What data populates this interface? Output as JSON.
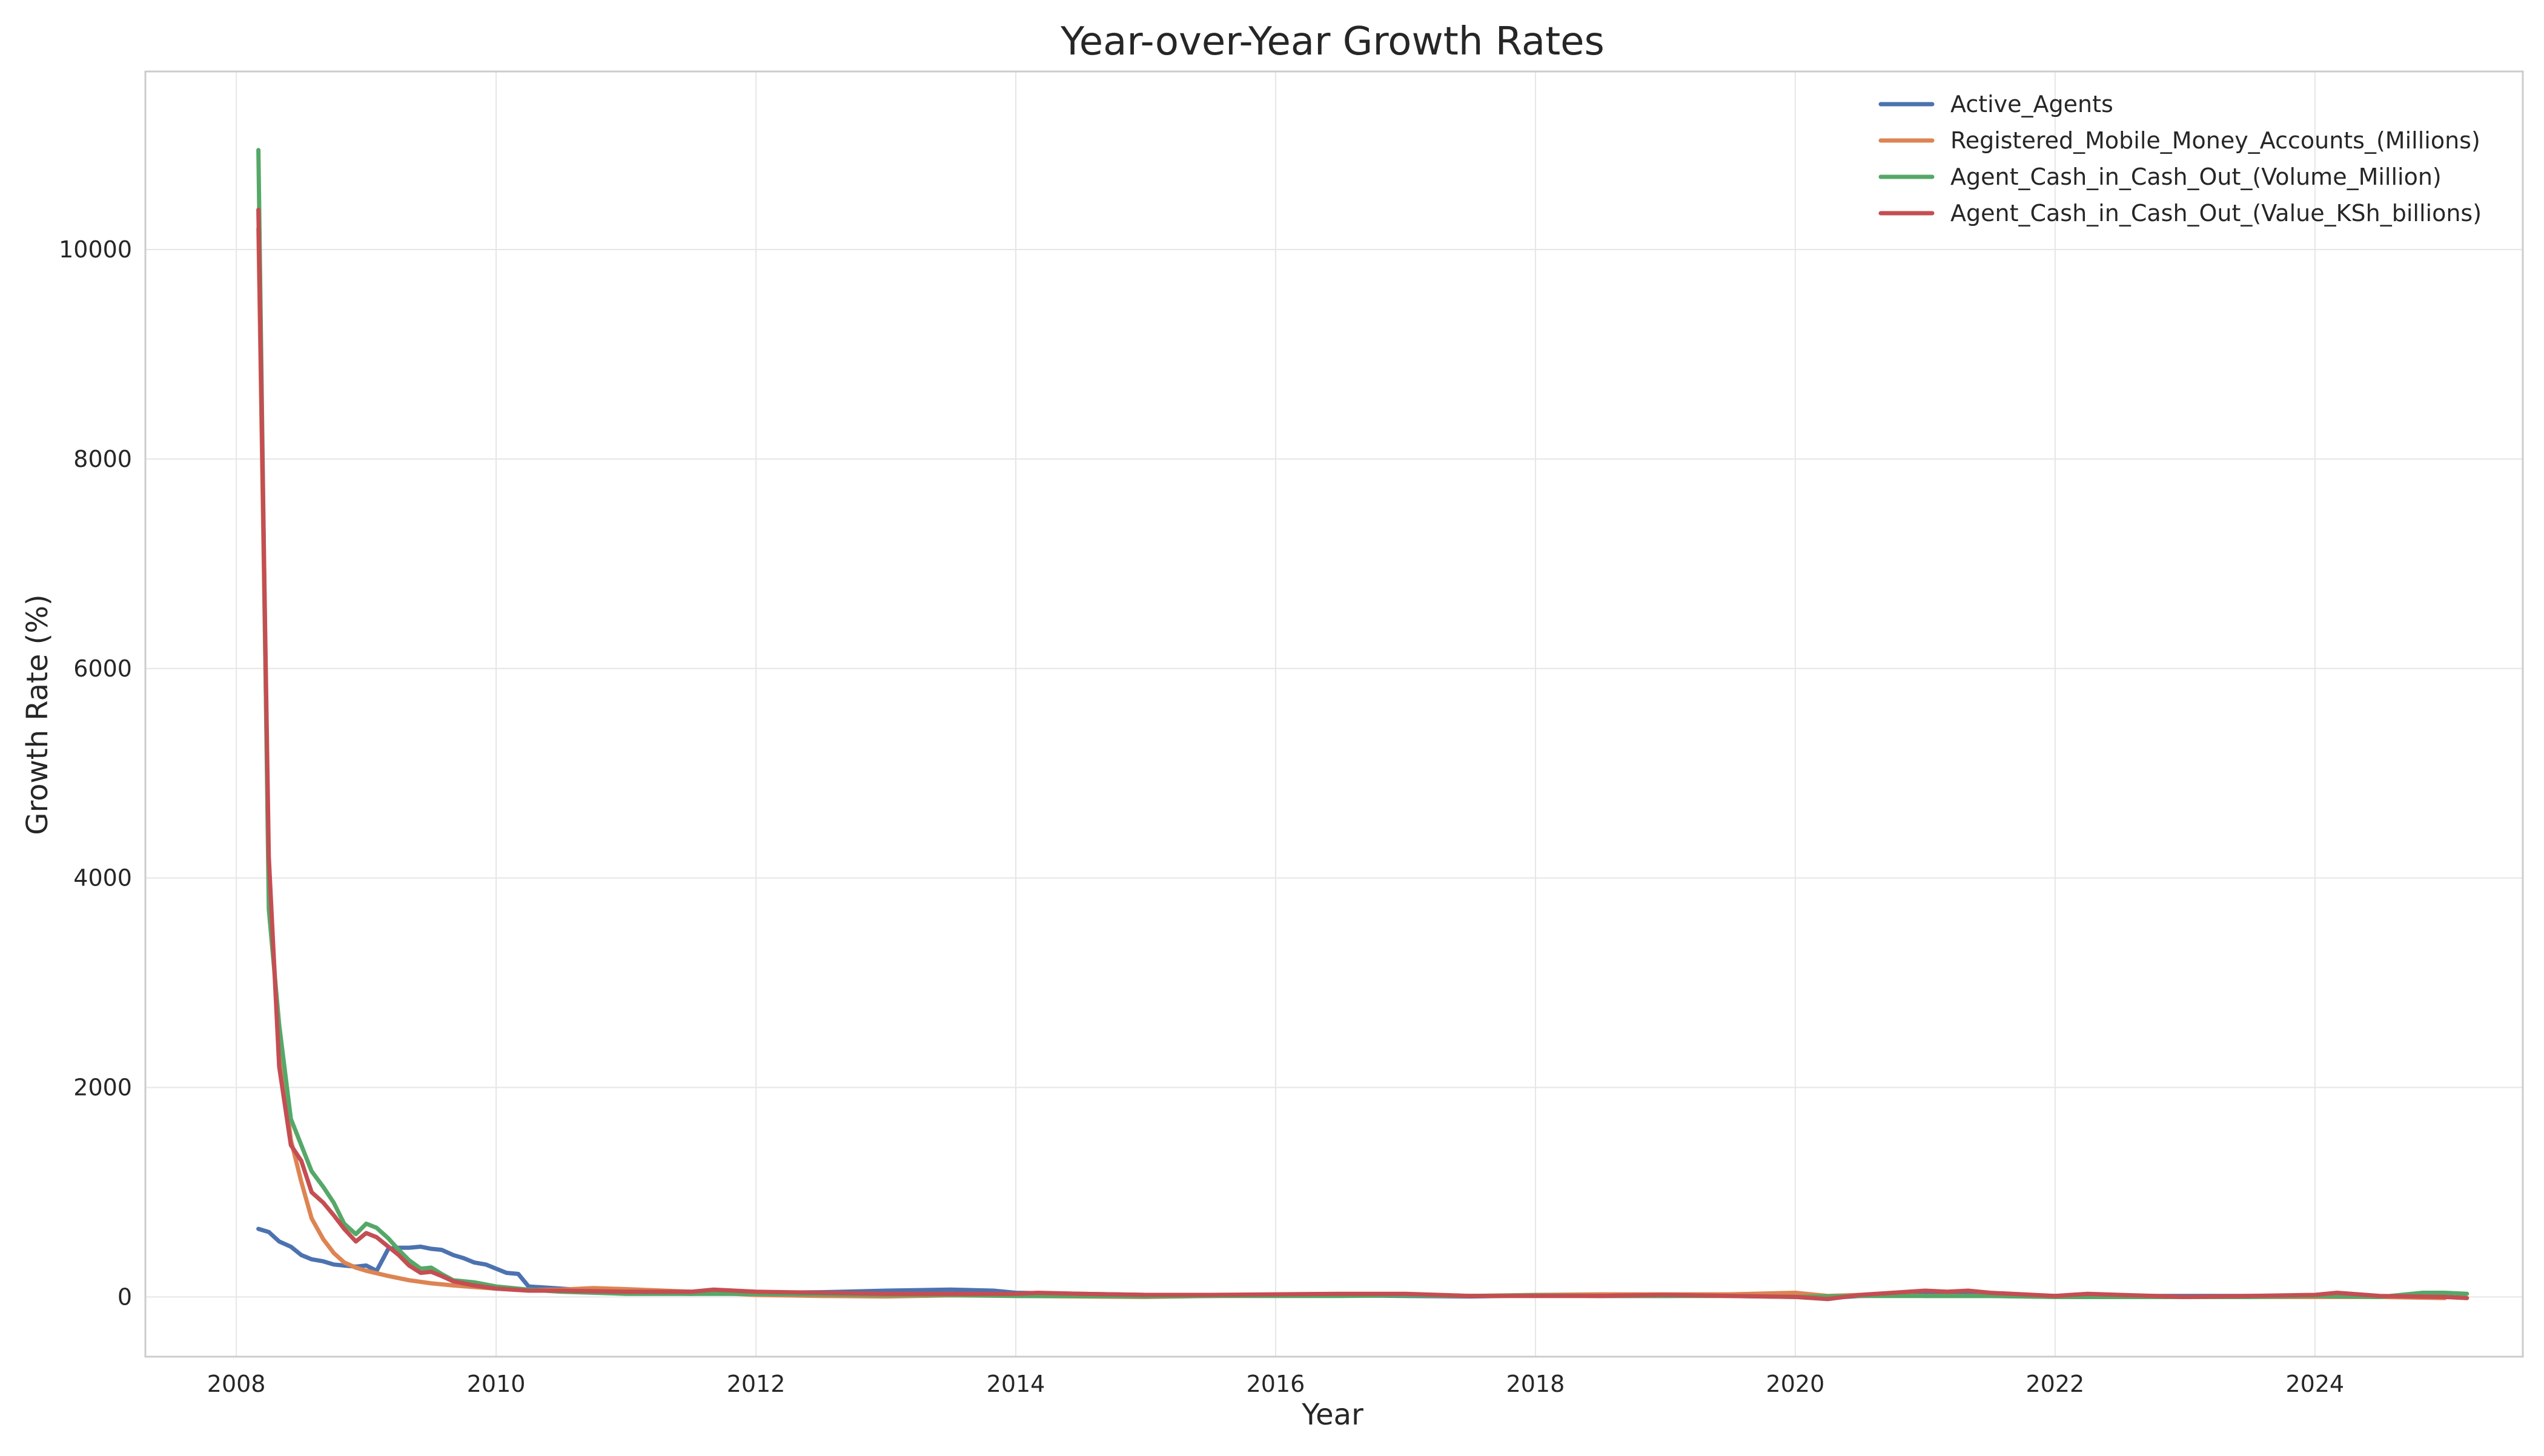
{
  "chart_data": {
    "type": "line",
    "title": "Year-over-Year Growth Rates",
    "xlabel": "Year",
    "ylabel": "Growth Rate (%)",
    "xlim": [
      2007.3,
      2025.6
    ],
    "ylim": [
      -570,
      11700
    ],
    "x_ticks": [
      2008,
      2010,
      2012,
      2014,
      2016,
      2018,
      2020,
      2022,
      2024
    ],
    "y_ticks": [
      0,
      2000,
      4000,
      6000,
      8000,
      10000
    ],
    "grid": true,
    "legend_position": "top-right",
    "series": [
      {
        "name": "Active_Agents",
        "color": "#4c72b0",
        "points": [
          [
            2008.17,
            650
          ],
          [
            2008.25,
            620
          ],
          [
            2008.33,
            530
          ],
          [
            2008.42,
            480
          ],
          [
            2008.5,
            400
          ],
          [
            2008.58,
            360
          ],
          [
            2008.67,
            340
          ],
          [
            2008.75,
            310
          ],
          [
            2008.83,
            300
          ],
          [
            2008.92,
            290
          ],
          [
            2009.0,
            300
          ],
          [
            2009.08,
            250
          ],
          [
            2009.17,
            460
          ],
          [
            2009.25,
            470
          ],
          [
            2009.33,
            470
          ],
          [
            2009.42,
            480
          ],
          [
            2009.5,
            460
          ],
          [
            2009.58,
            450
          ],
          [
            2009.67,
            400
          ],
          [
            2009.75,
            370
          ],
          [
            2009.83,
            330
          ],
          [
            2009.92,
            310
          ],
          [
            2010.0,
            270
          ],
          [
            2010.08,
            230
          ],
          [
            2010.17,
            220
          ],
          [
            2010.25,
            100
          ],
          [
            2010.5,
            80
          ],
          [
            2011.0,
            40
          ],
          [
            2011.5,
            30
          ],
          [
            2012.0,
            40
          ],
          [
            2012.5,
            45
          ],
          [
            2013.0,
            60
          ],
          [
            2013.5,
            70
          ],
          [
            2013.83,
            60
          ],
          [
            2014.0,
            40
          ],
          [
            2014.5,
            30
          ],
          [
            2015.0,
            20
          ],
          [
            2015.5,
            20
          ],
          [
            2016.0,
            20
          ],
          [
            2016.5,
            15
          ],
          [
            2017.0,
            10
          ],
          [
            2017.5,
            5
          ],
          [
            2018.0,
            15
          ],
          [
            2018.5,
            10
          ],
          [
            2019.0,
            10
          ],
          [
            2019.5,
            15
          ],
          [
            2020.0,
            10
          ],
          [
            2020.25,
            -10
          ],
          [
            2020.5,
            10
          ],
          [
            2021.0,
            20
          ],
          [
            2021.5,
            20
          ],
          [
            2022.0,
            10
          ],
          [
            2022.5,
            10
          ],
          [
            2023.0,
            10
          ],
          [
            2023.5,
            10
          ],
          [
            2024.0,
            10
          ],
          [
            2024.5,
            5
          ],
          [
            2025.0,
            5
          ]
        ]
      },
      {
        "name": "Registered_Mobile_Money_Accounts_(Millions)",
        "color": "#dd8452",
        "points": [
          [
            2008.17,
            10200
          ],
          [
            2008.25,
            4000
          ],
          [
            2008.33,
            2400
          ],
          [
            2008.42,
            1500
          ],
          [
            2008.5,
            1100
          ],
          [
            2008.58,
            750
          ],
          [
            2008.67,
            550
          ],
          [
            2008.75,
            420
          ],
          [
            2008.83,
            330
          ],
          [
            2008.92,
            280
          ],
          [
            2009.0,
            250
          ],
          [
            2009.17,
            200
          ],
          [
            2009.33,
            160
          ],
          [
            2009.5,
            130
          ],
          [
            2009.67,
            110
          ],
          [
            2009.83,
            95
          ],
          [
            2010.0,
            80
          ],
          [
            2010.25,
            65
          ],
          [
            2010.5,
            70
          ],
          [
            2010.75,
            85
          ],
          [
            2011.0,
            75
          ],
          [
            2011.5,
            50
          ],
          [
            2012.0,
            20
          ],
          [
            2012.5,
            10
          ],
          [
            2013.0,
            5
          ],
          [
            2013.5,
            15
          ],
          [
            2014.0,
            10
          ],
          [
            2014.5,
            5
          ],
          [
            2015.0,
            0
          ],
          [
            2015.5,
            10
          ],
          [
            2016.0,
            15
          ],
          [
            2016.5,
            20
          ],
          [
            2017.0,
            15
          ],
          [
            2017.5,
            10
          ],
          [
            2018.0,
            20
          ],
          [
            2018.5,
            25
          ],
          [
            2019.0,
            25
          ],
          [
            2019.5,
            25
          ],
          [
            2020.0,
            40
          ],
          [
            2020.25,
            10
          ],
          [
            2020.5,
            20
          ],
          [
            2021.0,
            10
          ],
          [
            2021.5,
            10
          ],
          [
            2022.0,
            0
          ],
          [
            2022.5,
            0
          ],
          [
            2023.0,
            0
          ],
          [
            2023.5,
            0
          ],
          [
            2024.0,
            0
          ],
          [
            2024.5,
            0
          ],
          [
            2025.0,
            -10
          ]
        ]
      },
      {
        "name": "Agent_Cash_in_Cash_Out_(Volume_Million)",
        "color": "#55a868",
        "points": [
          [
            2008.17,
            10950
          ],
          [
            2008.25,
            3700
          ],
          [
            2008.33,
            2600
          ],
          [
            2008.42,
            1700
          ],
          [
            2008.5,
            1450
          ],
          [
            2008.58,
            1200
          ],
          [
            2008.67,
            1050
          ],
          [
            2008.75,
            900
          ],
          [
            2008.83,
            700
          ],
          [
            2008.92,
            600
          ],
          [
            2009.0,
            700
          ],
          [
            2009.08,
            660
          ],
          [
            2009.17,
            560
          ],
          [
            2009.25,
            450
          ],
          [
            2009.33,
            350
          ],
          [
            2009.42,
            270
          ],
          [
            2009.5,
            280
          ],
          [
            2009.58,
            220
          ],
          [
            2009.67,
            160
          ],
          [
            2009.83,
            140
          ],
          [
            2010.0,
            100
          ],
          [
            2010.25,
            70
          ],
          [
            2010.5,
            50
          ],
          [
            2011.0,
            30
          ],
          [
            2011.5,
            30
          ],
          [
            2012.0,
            30
          ],
          [
            2012.5,
            25
          ],
          [
            2013.0,
            20
          ],
          [
            2013.5,
            20
          ],
          [
            2014.0,
            10
          ],
          [
            2014.5,
            10
          ],
          [
            2015.0,
            5
          ],
          [
            2015.5,
            10
          ],
          [
            2016.0,
            10
          ],
          [
            2016.5,
            10
          ],
          [
            2017.0,
            15
          ],
          [
            2017.5,
            10
          ],
          [
            2018.0,
            15
          ],
          [
            2018.5,
            10
          ],
          [
            2019.0,
            10
          ],
          [
            2019.5,
            10
          ],
          [
            2020.0,
            0
          ],
          [
            2020.5,
            10
          ],
          [
            2021.0,
            10
          ],
          [
            2021.5,
            10
          ],
          [
            2022.0,
            0
          ],
          [
            2022.5,
            0
          ],
          [
            2023.0,
            0
          ],
          [
            2023.5,
            0
          ],
          [
            2024.0,
            10
          ],
          [
            2024.5,
            0
          ],
          [
            2024.83,
            40
          ],
          [
            2025.0,
            40
          ],
          [
            2025.17,
            30
          ]
        ]
      },
      {
        "name": "Agent_Cash_in_Cash_Out_(Value_KSh_billions)",
        "color": "#c44e52",
        "points": [
          [
            2008.17,
            10380
          ],
          [
            2008.25,
            4200
          ],
          [
            2008.33,
            2200
          ],
          [
            2008.42,
            1450
          ],
          [
            2008.5,
            1300
          ],
          [
            2008.58,
            1000
          ],
          [
            2008.67,
            900
          ],
          [
            2008.75,
            780
          ],
          [
            2008.83,
            650
          ],
          [
            2008.92,
            530
          ],
          [
            2009.0,
            610
          ],
          [
            2009.08,
            570
          ],
          [
            2009.17,
            480
          ],
          [
            2009.25,
            400
          ],
          [
            2009.33,
            300
          ],
          [
            2009.42,
            230
          ],
          [
            2009.5,
            240
          ],
          [
            2009.58,
            200
          ],
          [
            2009.67,
            150
          ],
          [
            2009.83,
            110
          ],
          [
            2010.0,
            80
          ],
          [
            2010.25,
            60
          ],
          [
            2010.5,
            60
          ],
          [
            2011.0,
            50
          ],
          [
            2011.5,
            50
          ],
          [
            2011.67,
            70
          ],
          [
            2012.0,
            50
          ],
          [
            2012.5,
            40
          ],
          [
            2013.0,
            30
          ],
          [
            2013.5,
            30
          ],
          [
            2014.0,
            30
          ],
          [
            2014.17,
            40
          ],
          [
            2014.5,
            30
          ],
          [
            2015.0,
            20
          ],
          [
            2015.5,
            20
          ],
          [
            2016.0,
            25
          ],
          [
            2016.5,
            30
          ],
          [
            2017.0,
            30
          ],
          [
            2017.5,
            10
          ],
          [
            2018.0,
            10
          ],
          [
            2018.5,
            10
          ],
          [
            2019.0,
            20
          ],
          [
            2019.5,
            10
          ],
          [
            2020.0,
            0
          ],
          [
            2020.25,
            -20
          ],
          [
            2020.5,
            20
          ],
          [
            2021.0,
            60
          ],
          [
            2021.17,
            50
          ],
          [
            2021.33,
            60
          ],
          [
            2021.5,
            40
          ],
          [
            2022.0,
            10
          ],
          [
            2022.25,
            30
          ],
          [
            2022.5,
            20
          ],
          [
            2023.0,
            0
          ],
          [
            2023.5,
            10
          ],
          [
            2024.0,
            20
          ],
          [
            2024.17,
            40
          ],
          [
            2024.5,
            10
          ],
          [
            2025.0,
            0
          ],
          [
            2025.17,
            -10
          ]
        ]
      }
    ]
  }
}
